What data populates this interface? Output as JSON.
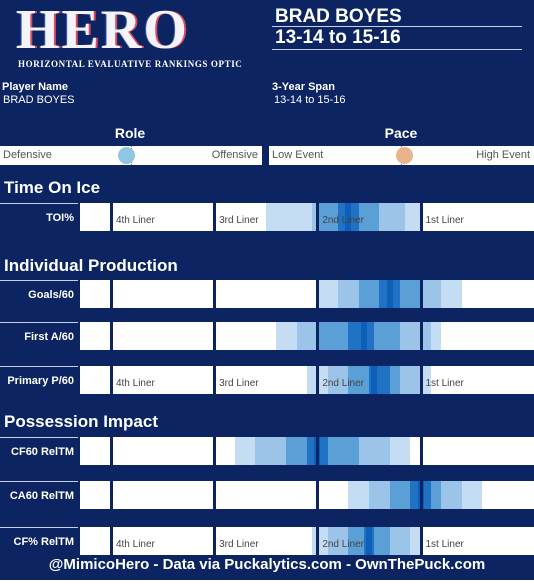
{
  "logo": {
    "title": "HERO",
    "subtitle": "HORIZONTAL EVALUATIVE RANKINGS OPTIC"
  },
  "header": {
    "player": "BRAD BOYES",
    "span": "13-14 to 15-16"
  },
  "info": {
    "player_label": "Player Name",
    "player_value": "BRAD BOYES",
    "span_label": "3-Year Span",
    "span_value": "13-14 to 15-16"
  },
  "role": {
    "title": "Role",
    "left": "Defensive",
    "right": "Offensive",
    "position": 0.43,
    "color": "#8fc6e3"
  },
  "pace": {
    "title": "Pace",
    "left": "Low Event",
    "right": "High Event",
    "position": 0.46,
    "color": "#e8b48c"
  },
  "sections": {
    "toi": "Time On Ice",
    "production": "Individual Production",
    "possession": "Possession Impact"
  },
  "tier_labels": [
    "4th Liner",
    "3rd Liner",
    "2nd Liner",
    "1st Liner"
  ],
  "colors": {
    "background": "#0c2461",
    "bands": [
      "#c5ddf2",
      "#9cc4e8",
      "#5a9fd6",
      "#1f72c4",
      "#0d5fb8"
    ],
    "median": "#0c2461"
  },
  "chart_data": {
    "type": "range-band",
    "scale_note": "Horizontal scale from 4th liner to 1st liner; tier boundaries at 0, 1, 2, 3 (4th, 3rd, 2nd, 1st); extends to about 4.1",
    "xlim": [
      -0.3,
      4.1
    ],
    "tier_boundaries": [
      0,
      1,
      2,
      3
    ],
    "metrics": [
      {
        "group": "toi",
        "label": "TOI%",
        "bands": [
          [
            1.5,
            3.0
          ],
          [
            1.95,
            2.85
          ],
          [
            2.0,
            2.6
          ],
          [
            2.2,
            2.4
          ]
        ],
        "median": 2.3,
        "show_tier_labels": true
      },
      {
        "group": "production",
        "label": "Goals/60",
        "bands": [
          [
            2.0,
            3.4
          ],
          [
            2.2,
            3.2
          ],
          [
            2.4,
            3.0
          ],
          [
            2.6,
            2.8
          ]
        ],
        "median": 2.7,
        "show_tier_labels": false
      },
      {
        "group": "production",
        "label": "First A/60",
        "bands": [
          [
            1.6,
            3.2
          ],
          [
            1.8,
            3.1
          ],
          [
            2.0,
            2.8
          ],
          [
            2.3,
            2.55
          ]
        ],
        "median": 2.45,
        "show_tier_labels": false
      },
      {
        "group": "production",
        "label": "Primary P/60",
        "bands": [
          [
            1.9,
            3.1
          ],
          [
            2.1,
            3.0
          ],
          [
            2.3,
            2.8
          ],
          [
            2.5,
            2.7
          ]
        ],
        "median": 2.55,
        "show_tier_labels": true
      },
      {
        "group": "possession",
        "label": "CF60 RelTM",
        "bands": [
          [
            1.2,
            2.9
          ],
          [
            1.4,
            2.7
          ],
          [
            1.7,
            2.4
          ],
          [
            1.9,
            2.1
          ]
        ],
        "median": 2.0,
        "show_tier_labels": false
      },
      {
        "group": "possession",
        "label": "CA60 RelTM",
        "bands": [
          [
            2.3,
            3.6
          ],
          [
            2.5,
            3.4
          ],
          [
            2.7,
            3.2
          ],
          [
            2.9,
            3.1
          ]
        ],
        "median": 3.0,
        "show_tier_labels": false
      },
      {
        "group": "possession",
        "label": "CF% RelTM",
        "bands": [
          [
            1.95,
            3.0
          ],
          [
            2.1,
            2.9
          ],
          [
            2.3,
            2.7
          ],
          [
            2.45,
            2.55
          ]
        ],
        "median": 2.5,
        "show_tier_labels": true
      }
    ]
  },
  "footer": "@MimicoHero - Data via Puckalytics.com - OwnThePuck.com"
}
